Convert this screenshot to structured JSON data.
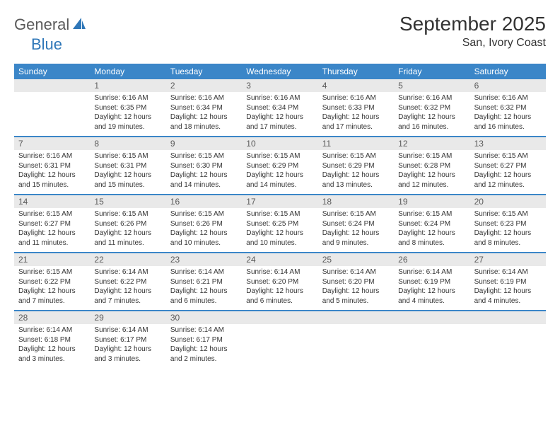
{
  "brand": {
    "general": "General",
    "blue": "Blue",
    "icon_color": "#2f77b8"
  },
  "title": "September 2025",
  "location": "San, Ivory Coast",
  "colors": {
    "header_bg": "#3b86c8",
    "header_text": "#ffffff",
    "daynum_bg": "#e9e9e9",
    "daynum_text": "#5a5a5a",
    "divider": "#3b86c8",
    "body_text": "#333333"
  },
  "weekdays": [
    "Sunday",
    "Monday",
    "Tuesday",
    "Wednesday",
    "Thursday",
    "Friday",
    "Saturday"
  ],
  "weeks": [
    [
      {
        "n": "",
        "sunrise": "",
        "sunset": "",
        "daylight": ""
      },
      {
        "n": "1",
        "sunrise": "Sunrise: 6:16 AM",
        "sunset": "Sunset: 6:35 PM",
        "daylight": "Daylight: 12 hours and 19 minutes."
      },
      {
        "n": "2",
        "sunrise": "Sunrise: 6:16 AM",
        "sunset": "Sunset: 6:34 PM",
        "daylight": "Daylight: 12 hours and 18 minutes."
      },
      {
        "n": "3",
        "sunrise": "Sunrise: 6:16 AM",
        "sunset": "Sunset: 6:34 PM",
        "daylight": "Daylight: 12 hours and 17 minutes."
      },
      {
        "n": "4",
        "sunrise": "Sunrise: 6:16 AM",
        "sunset": "Sunset: 6:33 PM",
        "daylight": "Daylight: 12 hours and 17 minutes."
      },
      {
        "n": "5",
        "sunrise": "Sunrise: 6:16 AM",
        "sunset": "Sunset: 6:32 PM",
        "daylight": "Daylight: 12 hours and 16 minutes."
      },
      {
        "n": "6",
        "sunrise": "Sunrise: 6:16 AM",
        "sunset": "Sunset: 6:32 PM",
        "daylight": "Daylight: 12 hours and 16 minutes."
      }
    ],
    [
      {
        "n": "7",
        "sunrise": "Sunrise: 6:16 AM",
        "sunset": "Sunset: 6:31 PM",
        "daylight": "Daylight: 12 hours and 15 minutes."
      },
      {
        "n": "8",
        "sunrise": "Sunrise: 6:15 AM",
        "sunset": "Sunset: 6:31 PM",
        "daylight": "Daylight: 12 hours and 15 minutes."
      },
      {
        "n": "9",
        "sunrise": "Sunrise: 6:15 AM",
        "sunset": "Sunset: 6:30 PM",
        "daylight": "Daylight: 12 hours and 14 minutes."
      },
      {
        "n": "10",
        "sunrise": "Sunrise: 6:15 AM",
        "sunset": "Sunset: 6:29 PM",
        "daylight": "Daylight: 12 hours and 14 minutes."
      },
      {
        "n": "11",
        "sunrise": "Sunrise: 6:15 AM",
        "sunset": "Sunset: 6:29 PM",
        "daylight": "Daylight: 12 hours and 13 minutes."
      },
      {
        "n": "12",
        "sunrise": "Sunrise: 6:15 AM",
        "sunset": "Sunset: 6:28 PM",
        "daylight": "Daylight: 12 hours and 12 minutes."
      },
      {
        "n": "13",
        "sunrise": "Sunrise: 6:15 AM",
        "sunset": "Sunset: 6:27 PM",
        "daylight": "Daylight: 12 hours and 12 minutes."
      }
    ],
    [
      {
        "n": "14",
        "sunrise": "Sunrise: 6:15 AM",
        "sunset": "Sunset: 6:27 PM",
        "daylight": "Daylight: 12 hours and 11 minutes."
      },
      {
        "n": "15",
        "sunrise": "Sunrise: 6:15 AM",
        "sunset": "Sunset: 6:26 PM",
        "daylight": "Daylight: 12 hours and 11 minutes."
      },
      {
        "n": "16",
        "sunrise": "Sunrise: 6:15 AM",
        "sunset": "Sunset: 6:26 PM",
        "daylight": "Daylight: 12 hours and 10 minutes."
      },
      {
        "n": "17",
        "sunrise": "Sunrise: 6:15 AM",
        "sunset": "Sunset: 6:25 PM",
        "daylight": "Daylight: 12 hours and 10 minutes."
      },
      {
        "n": "18",
        "sunrise": "Sunrise: 6:15 AM",
        "sunset": "Sunset: 6:24 PM",
        "daylight": "Daylight: 12 hours and 9 minutes."
      },
      {
        "n": "19",
        "sunrise": "Sunrise: 6:15 AM",
        "sunset": "Sunset: 6:24 PM",
        "daylight": "Daylight: 12 hours and 8 minutes."
      },
      {
        "n": "20",
        "sunrise": "Sunrise: 6:15 AM",
        "sunset": "Sunset: 6:23 PM",
        "daylight": "Daylight: 12 hours and 8 minutes."
      }
    ],
    [
      {
        "n": "21",
        "sunrise": "Sunrise: 6:15 AM",
        "sunset": "Sunset: 6:22 PM",
        "daylight": "Daylight: 12 hours and 7 minutes."
      },
      {
        "n": "22",
        "sunrise": "Sunrise: 6:14 AM",
        "sunset": "Sunset: 6:22 PM",
        "daylight": "Daylight: 12 hours and 7 minutes."
      },
      {
        "n": "23",
        "sunrise": "Sunrise: 6:14 AM",
        "sunset": "Sunset: 6:21 PM",
        "daylight": "Daylight: 12 hours and 6 minutes."
      },
      {
        "n": "24",
        "sunrise": "Sunrise: 6:14 AM",
        "sunset": "Sunset: 6:20 PM",
        "daylight": "Daylight: 12 hours and 6 minutes."
      },
      {
        "n": "25",
        "sunrise": "Sunrise: 6:14 AM",
        "sunset": "Sunset: 6:20 PM",
        "daylight": "Daylight: 12 hours and 5 minutes."
      },
      {
        "n": "26",
        "sunrise": "Sunrise: 6:14 AM",
        "sunset": "Sunset: 6:19 PM",
        "daylight": "Daylight: 12 hours and 4 minutes."
      },
      {
        "n": "27",
        "sunrise": "Sunrise: 6:14 AM",
        "sunset": "Sunset: 6:19 PM",
        "daylight": "Daylight: 12 hours and 4 minutes."
      }
    ],
    [
      {
        "n": "28",
        "sunrise": "Sunrise: 6:14 AM",
        "sunset": "Sunset: 6:18 PM",
        "daylight": "Daylight: 12 hours and 3 minutes."
      },
      {
        "n": "29",
        "sunrise": "Sunrise: 6:14 AM",
        "sunset": "Sunset: 6:17 PM",
        "daylight": "Daylight: 12 hours and 3 minutes."
      },
      {
        "n": "30",
        "sunrise": "Sunrise: 6:14 AM",
        "sunset": "Sunset: 6:17 PM",
        "daylight": "Daylight: 12 hours and 2 minutes."
      },
      {
        "n": "",
        "sunrise": "",
        "sunset": "",
        "daylight": ""
      },
      {
        "n": "",
        "sunrise": "",
        "sunset": "",
        "daylight": ""
      },
      {
        "n": "",
        "sunrise": "",
        "sunset": "",
        "daylight": ""
      },
      {
        "n": "",
        "sunrise": "",
        "sunset": "",
        "daylight": ""
      }
    ]
  ]
}
